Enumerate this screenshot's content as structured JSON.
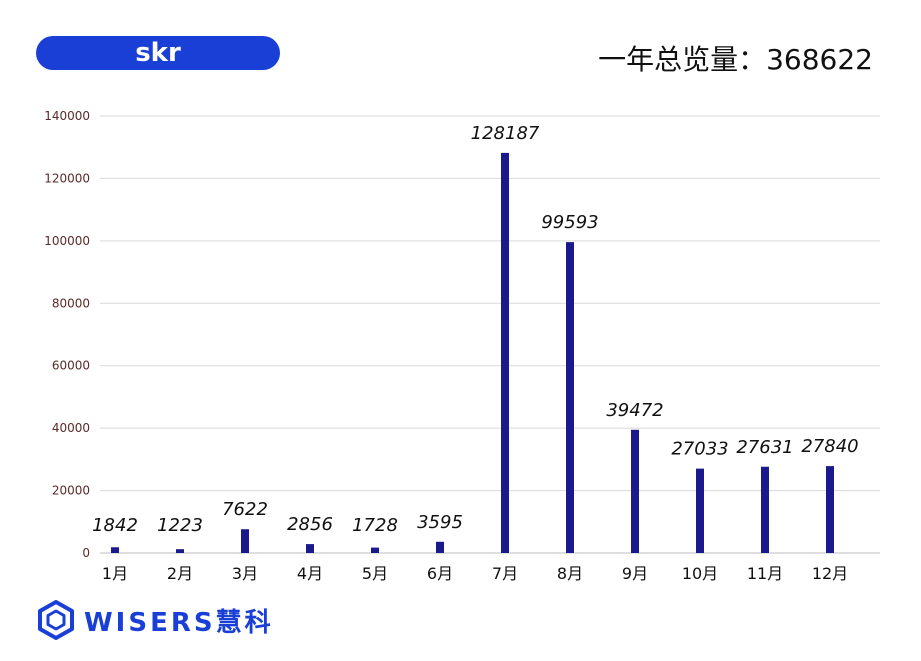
{
  "header": {
    "title": "skr",
    "total_label": "一年总览量：368622"
  },
  "logo": {
    "icon": "hexagon-logo-icon",
    "text": "WISERS慧科"
  },
  "colors": {
    "accent": "#1a3fd6",
    "bar": "#1a1a8c",
    "grid": "#d9d9d9"
  },
  "chart_data": {
    "type": "bar",
    "categories": [
      "1月",
      "2月",
      "3月",
      "4月",
      "5月",
      "6月",
      "7月",
      "8月",
      "9月",
      "10月",
      "11月",
      "12月"
    ],
    "values": [
      1842,
      1223,
      7622,
      2856,
      1728,
      3595,
      128187,
      99593,
      39472,
      27033,
      27631,
      27840
    ],
    "data_labels": [
      "1842",
      "1223",
      "7622",
      "2856",
      "1728",
      "3595",
      "128187",
      "99593",
      "39472",
      "27033",
      "27631",
      "27840"
    ],
    "yticks": [
      0,
      20000,
      40000,
      60000,
      80000,
      100000,
      120000,
      140000
    ],
    "ytick_labels": [
      "0",
      "20000",
      "40000",
      "60000",
      "80000",
      "100000",
      "120000",
      "140000"
    ],
    "ylim": [
      0,
      140000
    ],
    "grid": true,
    "legend": false,
    "xlabel": "",
    "ylabel": ""
  }
}
